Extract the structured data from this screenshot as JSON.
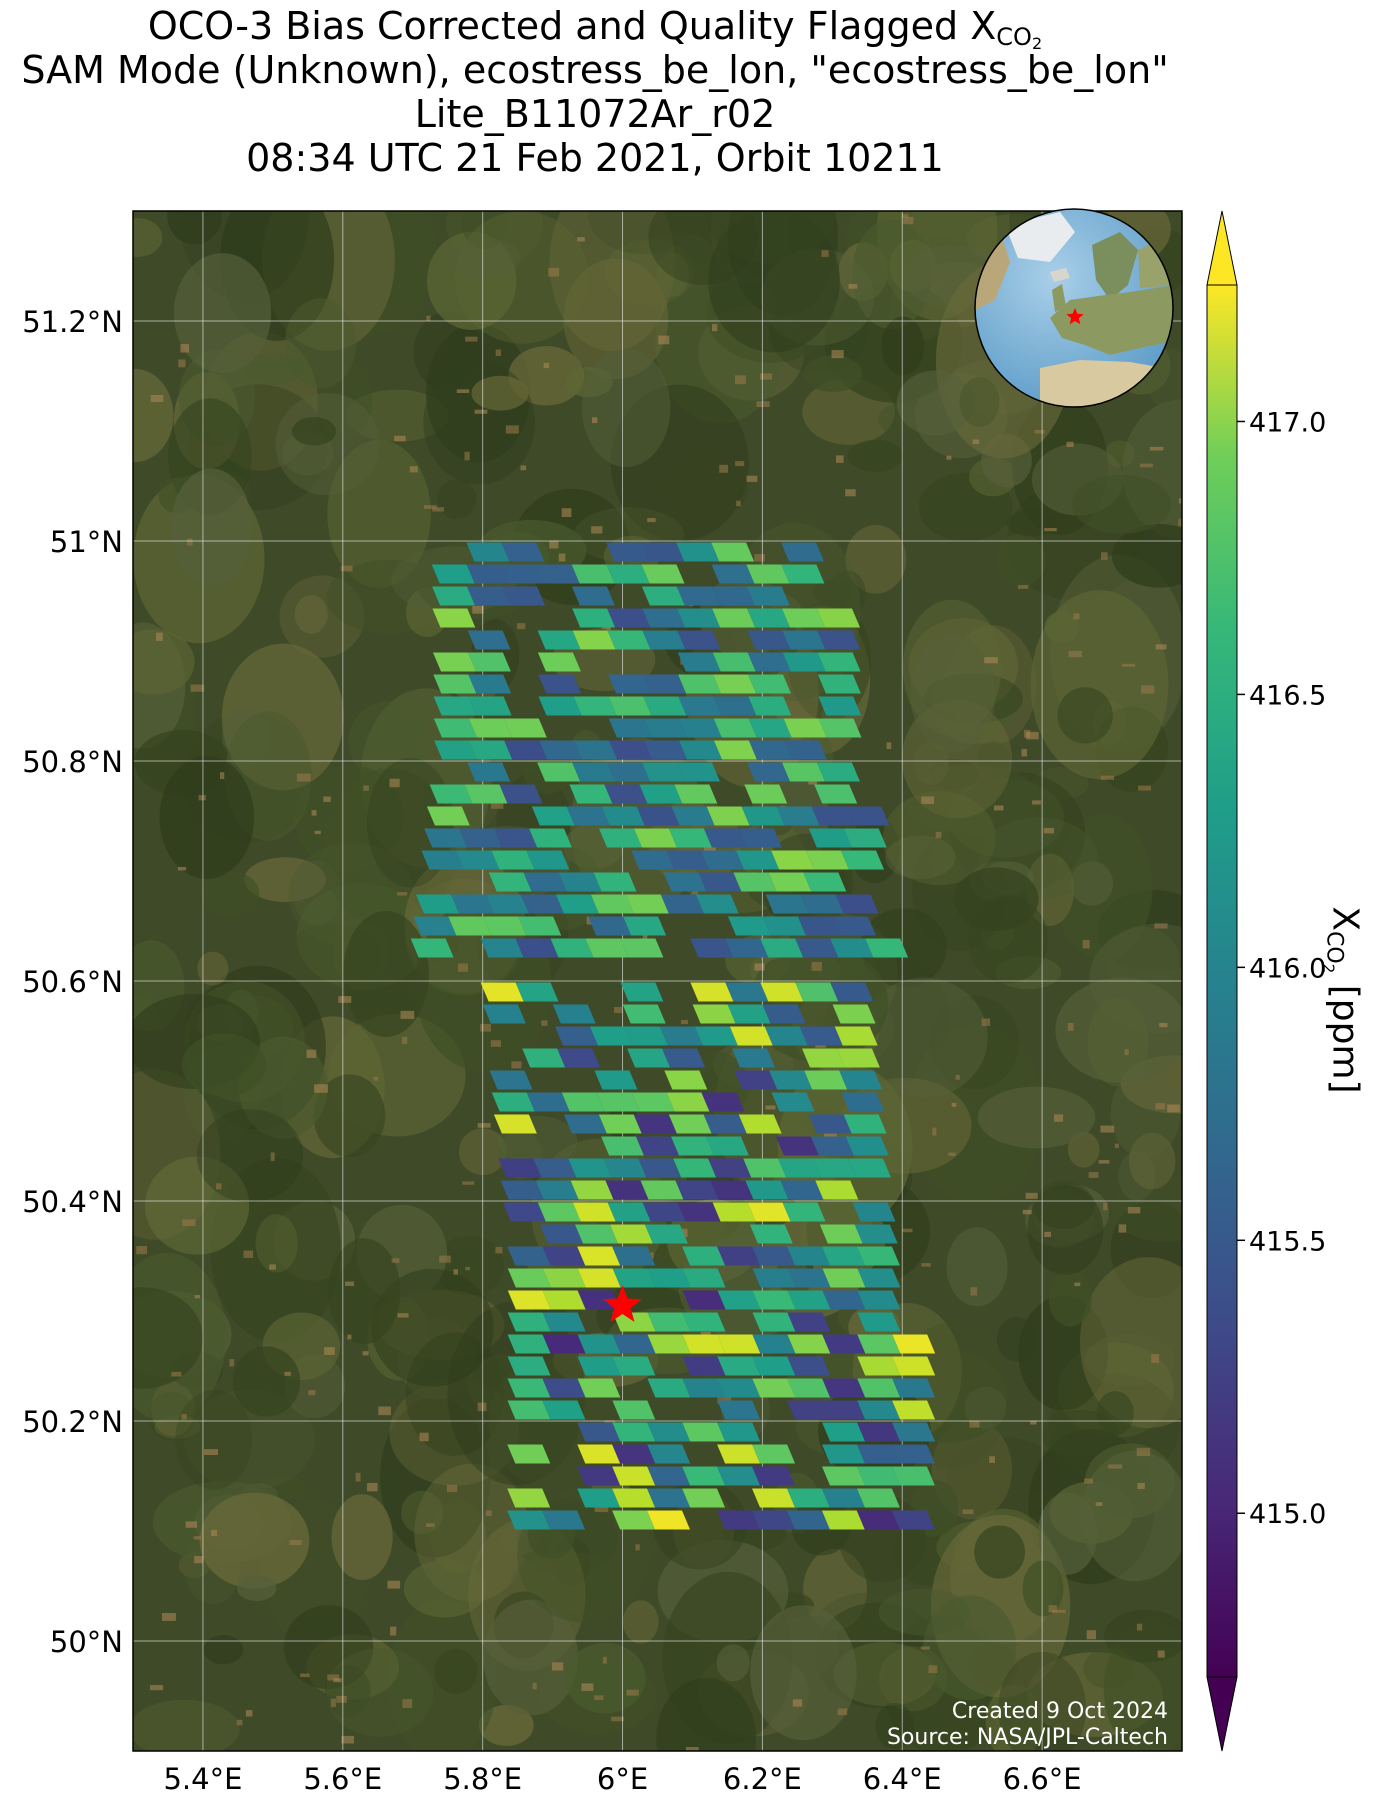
{
  "title": {
    "line1_prefix": "OCO-3 Bias Corrected and Quality Flagged X",
    "line1_sub": "CO",
    "line1_subsub": "2",
    "line2": "SAM Mode (Unknown), ecostress_be_lon, \"ecostress_be_lon\"",
    "line3": "Lite_B11072Ar_r02",
    "line4": "08:34 UTC 21 Feb 2021, Orbit 10211"
  },
  "credits": {
    "created": "Created 9 Oct 2024",
    "source": "Source: NASA/JPL-Caltech"
  },
  "colorbar": {
    "label_prefix": "X",
    "label_sub": "CO",
    "label_subsub": "2",
    "label_suffix": " [ppm]",
    "range": [
      414.7,
      417.25
    ],
    "colormap": "viridis",
    "extend": "both",
    "ticks": [
      {
        "value": 415.0,
        "label": "415.0"
      },
      {
        "value": 415.5,
        "label": "415.5"
      },
      {
        "value": 416.0,
        "label": "416.0"
      },
      {
        "value": 416.5,
        "label": "416.5"
      },
      {
        "value": 417.0,
        "label": "417.0"
      }
    ]
  },
  "map": {
    "lon_range": [
      5.3,
      6.8
    ],
    "lat_range": [
      49.9,
      51.3
    ],
    "background": "satellite-imagery",
    "gridlines": true,
    "lon_ticks": [
      {
        "value": 5.4,
        "label": "5.4°E"
      },
      {
        "value": 5.6,
        "label": "5.6°E"
      },
      {
        "value": 5.8,
        "label": "5.8°E"
      },
      {
        "value": 6.0,
        "label": "6°E"
      },
      {
        "value": 6.2,
        "label": "6.2°E"
      },
      {
        "value": 6.4,
        "label": "6.4°E"
      },
      {
        "value": 6.6,
        "label": "6.6°E"
      }
    ],
    "lat_ticks": [
      {
        "value": 50.0,
        "label": "50°N"
      },
      {
        "value": 50.2,
        "label": "50.2°N"
      },
      {
        "value": 50.4,
        "label": "50.4°N"
      },
      {
        "value": 50.6,
        "label": "50.6°N"
      },
      {
        "value": 50.8,
        "label": "50.8°N"
      },
      {
        "value": 51.0,
        "label": "51°N"
      },
      {
        "value": 51.2,
        "label": "51.2°N"
      }
    ],
    "target": {
      "lon": 6.0,
      "lat": 50.305,
      "marker": "red-star"
    },
    "inset_globe": {
      "center_region": "Europe",
      "marker": "red-star"
    }
  },
  "soundings_summary": {
    "north_swath": {
      "lon_min": 5.72,
      "lon_max": 6.38,
      "lat_min": 50.62,
      "lat_max": 50.99,
      "dominant_range": [
        415.3,
        416.8
      ]
    },
    "south_swath": {
      "lon_min": 5.78,
      "lon_max": 6.45,
      "lat_min": 50.1,
      "lat_max": 50.59,
      "dominant_range": [
        415.0,
        417.2
      ]
    }
  }
}
